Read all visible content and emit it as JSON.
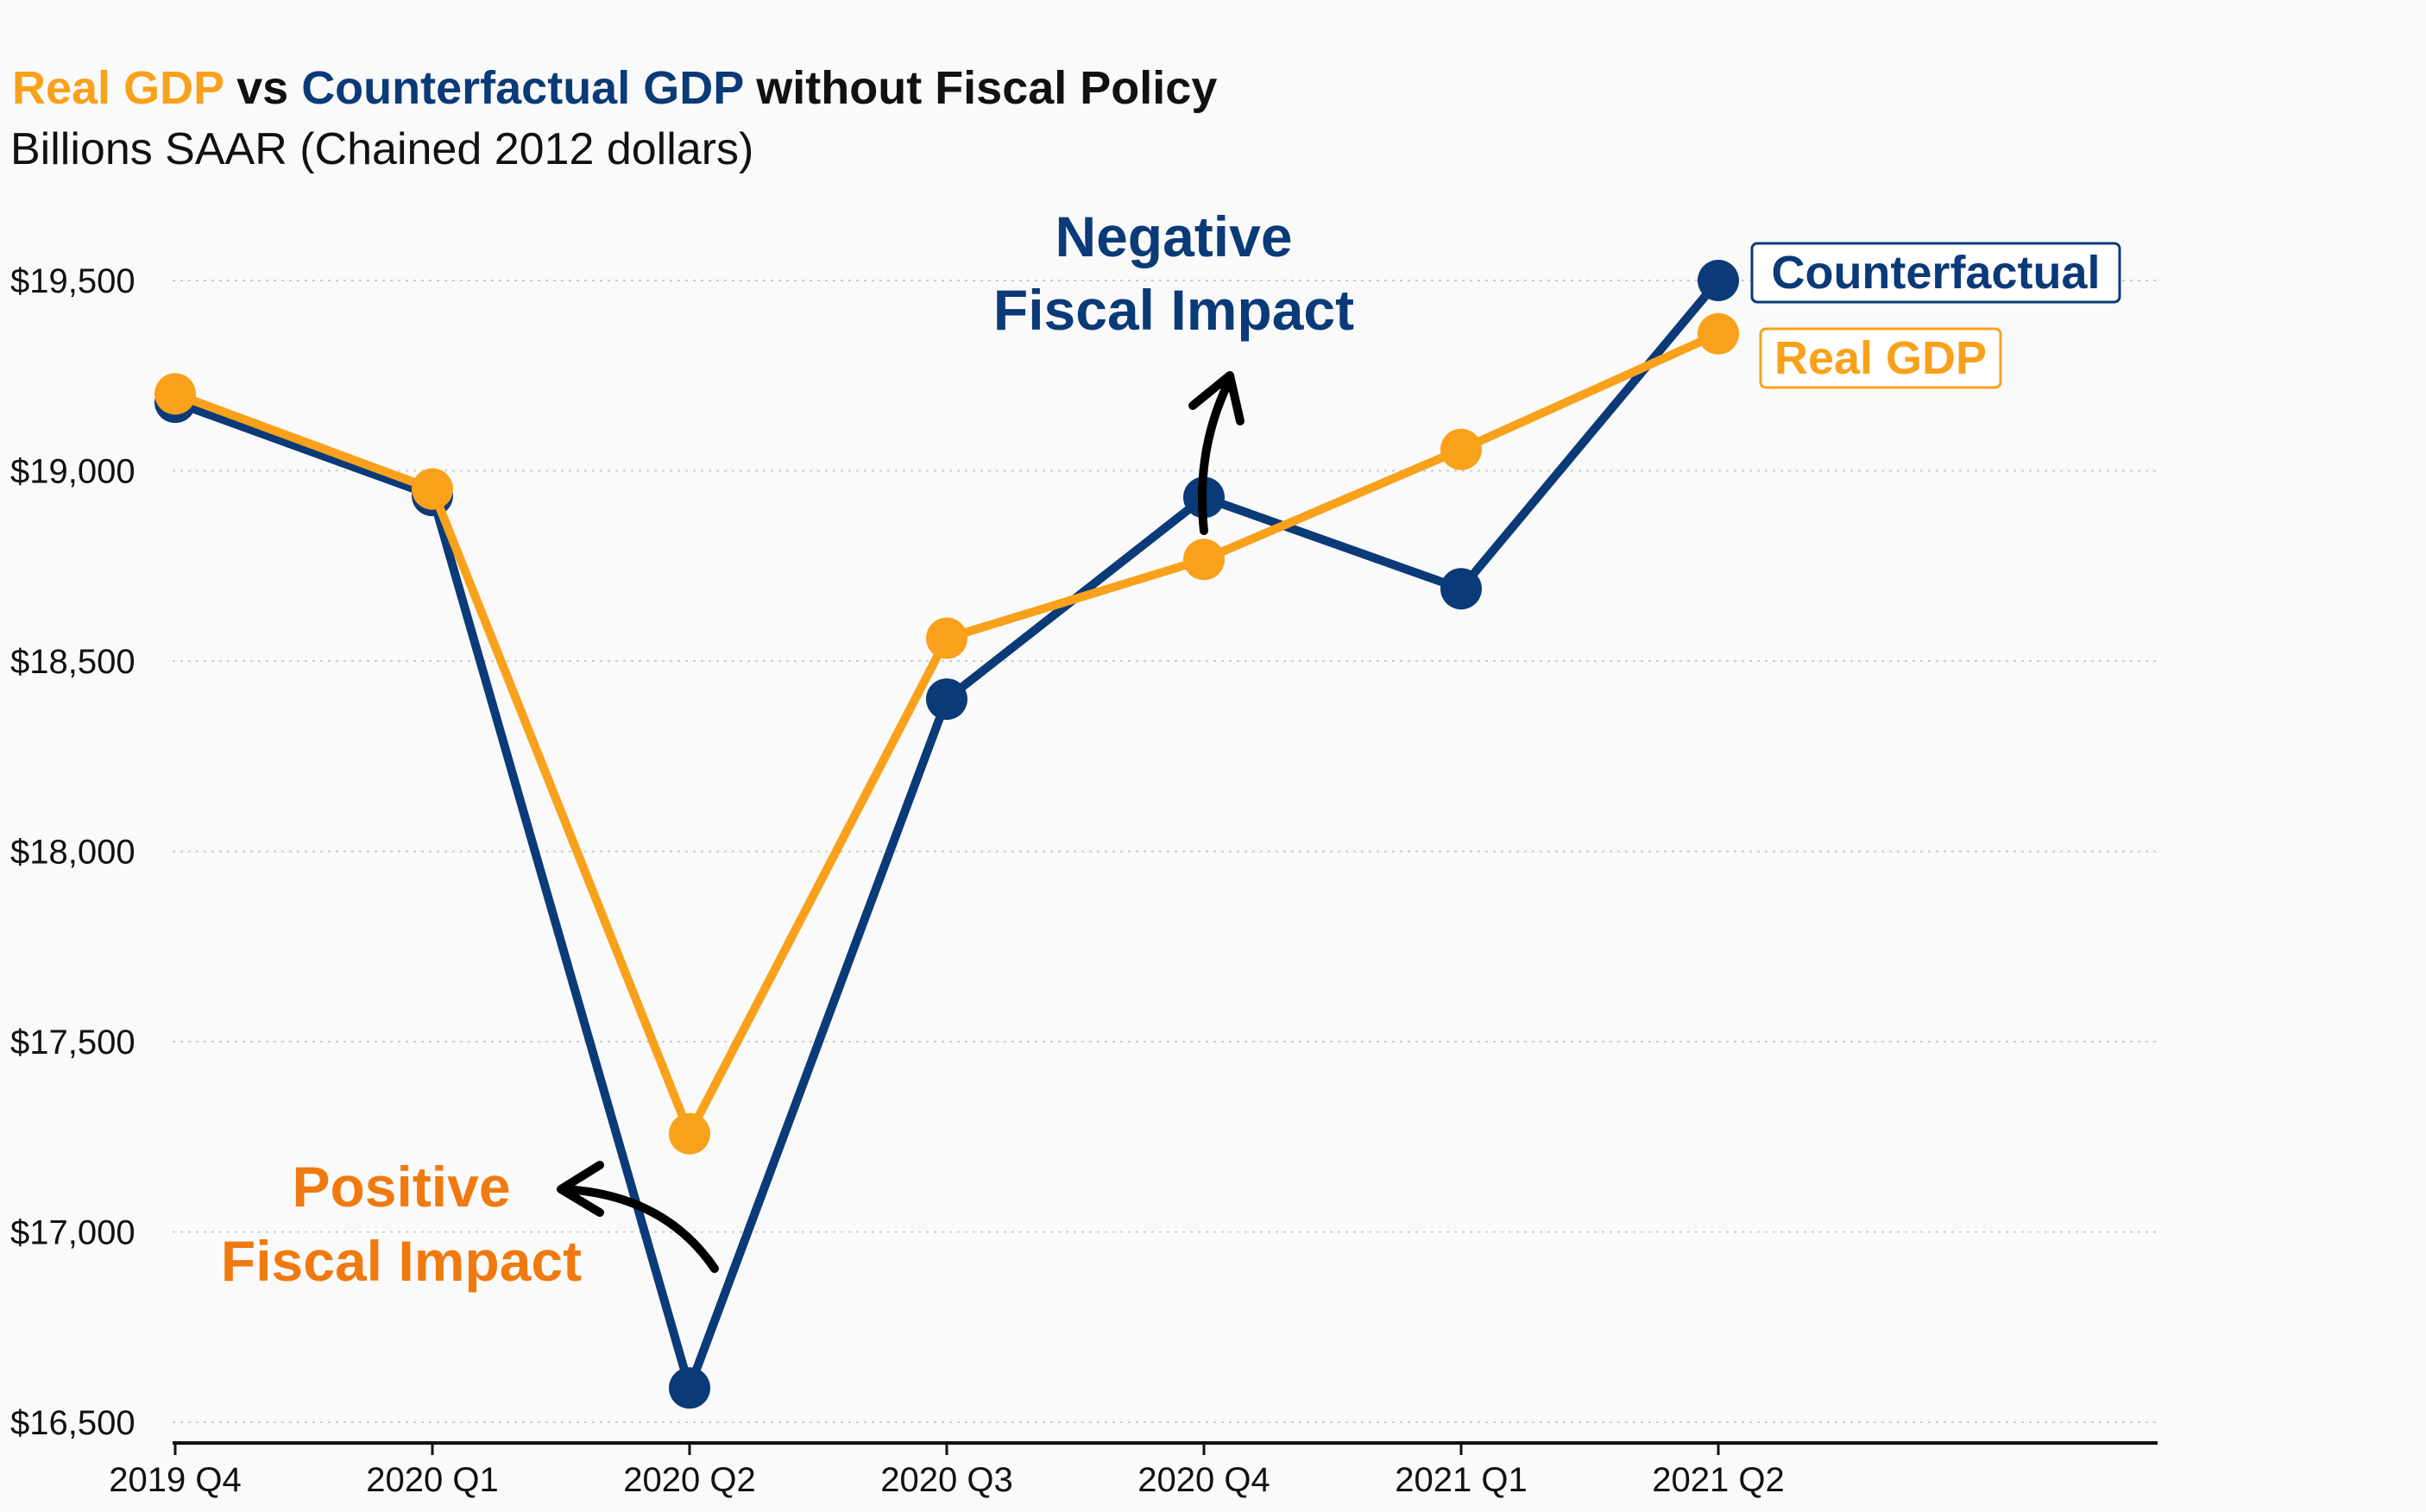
{
  "chart_data": {
    "type": "line",
    "title_parts": [
      {
        "text": "Real GDP",
        "color": "#f9a11b"
      },
      {
        "text": " vs ",
        "color": "#111111"
      },
      {
        "text": "Counterfactual GDP",
        "color": "#0b3a78"
      },
      {
        "text": " without Fiscal Policy",
        "color": "#111111"
      }
    ],
    "subtitle": "Billions SAAR (Chained 2012 dollars)",
    "categories": [
      "2019 Q4",
      "2020 Q1",
      "2020 Q2",
      "2020 Q3",
      "2020 Q4",
      "2021 Q1",
      "2021 Q2"
    ],
    "series": [
      {
        "name": "Real GDP",
        "color": "#f9a11b",
        "values": [
          19202,
          18952,
          17258,
          18560,
          18767,
          19056,
          19360
        ]
      },
      {
        "name": "Counterfactual",
        "color": "#0b3a78",
        "values": [
          19180,
          18935,
          16590,
          18400,
          18930,
          18690,
          19500
        ]
      }
    ],
    "ylim": [
      16500,
      19500
    ],
    "yticks": [
      16500,
      17000,
      17500,
      18000,
      18500,
      19000,
      19500
    ],
    "ytick_labels": [
      "$16,500",
      "$17,000",
      "$17,500",
      "$18,000",
      "$18,500",
      "$19,000",
      "$19,500"
    ],
    "grid": true,
    "legend_placement": "right-end-labels",
    "annotations": [
      {
        "lines": [
          "Negative",
          "Fiscal Impact"
        ],
        "color": "#0b3a78"
      },
      {
        "lines": [
          "Positive",
          "Fiscal Impact"
        ],
        "color": "#f07a10"
      }
    ],
    "xlabel": "",
    "ylabel": ""
  },
  "colors": {
    "background": "#fafafa",
    "grid": "#cccccc",
    "axis": "#111111",
    "arrow": "#000000"
  }
}
